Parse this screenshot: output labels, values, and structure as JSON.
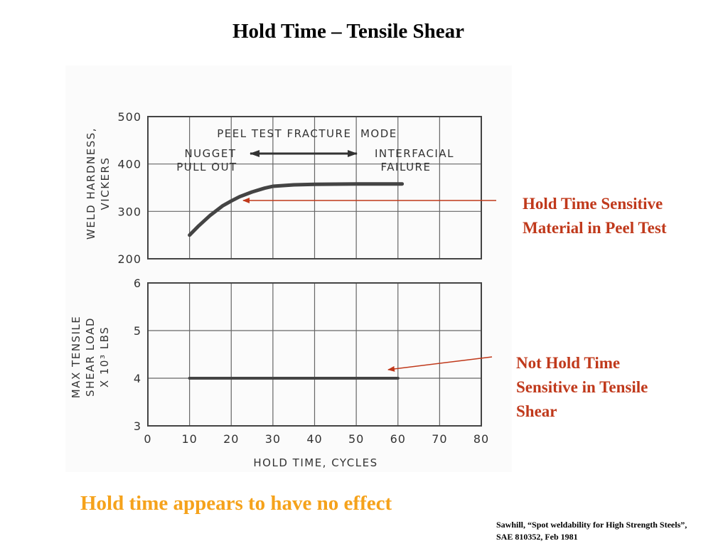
{
  "slide": {
    "title": "Hold Time – Tensile Shear",
    "conclusion": "Hold time appears to have no effect",
    "citation_line1": "Sawhill, “Spot weldability for High Strength Steels”,",
    "citation_line2": "SAE 810352, Feb 1981",
    "annotation_top": [
      "Hold Time Sensitive",
      "Material in Peel Test"
    ],
    "annotation_bottom": [
      "Not Hold Time",
      "Sensitive in Tensile",
      "Shear"
    ],
    "annotation_color": "#c0391b",
    "conclusion_color": "#f5a21b"
  },
  "chart_data": [
    {
      "type": "line",
      "ylabel": [
        "WELD HARDNESS,",
        "VICKERS"
      ],
      "xlabel": "HOLD TIME, CYCLES",
      "xlim": [
        0,
        80
      ],
      "ylim": [
        200,
        500
      ],
      "xticks": [
        0,
        10,
        20,
        30,
        40,
        50,
        60,
        70,
        80
      ],
      "yticks": [
        200,
        300,
        400,
        500
      ],
      "grid": true,
      "series": [
        {
          "x": [
            10,
            12,
            15,
            18,
            20,
            22,
            25,
            28,
            30,
            35,
            40,
            50,
            61
          ],
          "y": [
            250,
            268,
            292,
            312,
            322,
            331,
            341,
            349,
            353,
            356,
            357,
            358,
            358
          ]
        }
      ],
      "annotations": {
        "mode_title": "PEEL TEST FRACTURE  MODE",
        "left_mode": [
          "NUGGET",
          "PULL OUT"
        ],
        "right_mode": [
          "INTERFACIAL",
          "FAILURE"
        ]
      }
    },
    {
      "type": "line",
      "ylabel": [
        "MAX TENSILE",
        "SHEAR LOAD",
        "X 10³ LBS"
      ],
      "xlabel": "HOLD TIME, CYCLES",
      "xlim": [
        0,
        80
      ],
      "ylim": [
        3,
        6
      ],
      "xticks": [
        0,
        10,
        20,
        30,
        40,
        50,
        60,
        70,
        80
      ],
      "yticks": [
        3,
        4,
        5,
        6
      ],
      "grid": true,
      "series": [
        {
          "x": [
            10,
            60
          ],
          "y": [
            4.0,
            4.0
          ]
        }
      ]
    }
  ]
}
